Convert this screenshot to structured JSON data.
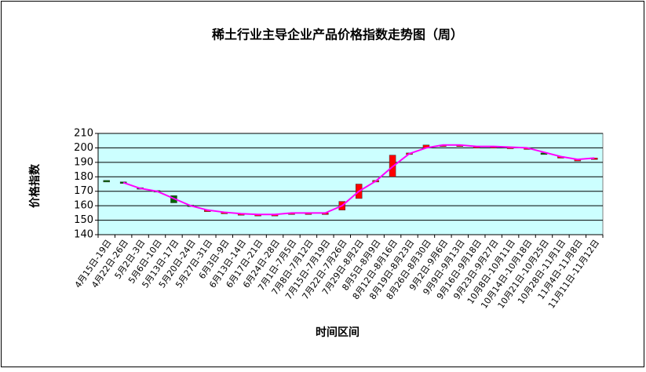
{
  "chart_data": {
    "type": "candlestick",
    "title": "稀土行业主导企业产品价格指数走势图（周）",
    "ylabel": "价格指数",
    "xlabel": "时间区间",
    "categories": [
      "4月15日-19日",
      "4月22日-26日",
      "5月2日-3日",
      "5月6日-10日",
      "5月13日-17日",
      "5月20日-24日",
      "5月27日-31日",
      "6月3日-9日",
      "6月13日-14日",
      "6月17日-21日",
      "6月24日-28日",
      "7月1日-7月5日",
      "7月8日-7月12日",
      "7月15日-7月19日",
      "7月22日-7月26日",
      "7月29日-8月2日",
      "8月5日-8月9日",
      "8月12日-8月16日",
      "8月19日-8月23日",
      "8月26日-8月30日",
      "9月2日-9月6日",
      "9月9日-9月13日",
      "9月16日-9月18日",
      "9月23日-9月27日",
      "10月8日-10月11日",
      "10月14日-10月18日",
      "10月21日-10月25日",
      "10月28日-11月1日",
      "11月4日-11月8日",
      "11月11日-11月12日"
    ],
    "open": [
      177.5,
      176.5,
      172.5,
      170.5,
      167,
      160.5,
      157,
      155.5,
      154.5,
      154,
      154,
      155,
      155,
      155,
      157,
      165,
      176.5,
      180,
      196,
      200,
      202,
      202,
      201,
      201,
      200.5,
      200,
      196.5,
      194,
      192,
      192
    ],
    "close": [
      177,
      175.5,
      171.5,
      169.5,
      162,
      159.5,
      157,
      155.5,
      154.5,
      154,
      154,
      155,
      155,
      155,
      163,
      175,
      177.5,
      195,
      196.5,
      202,
      202,
      202,
      201,
      201,
      200.5,
      200,
      196,
      194,
      192,
      193
    ],
    "values": [
      null,
      176,
      172,
      170,
      165,
      160,
      157,
      155.5,
      154.5,
      154,
      154,
      155,
      155,
      155,
      160,
      170,
      177,
      187,
      196,
      200,
      202,
      202,
      201,
      201,
      200.5,
      200,
      197,
      194,
      192,
      193
    ],
    "line_color": "#ff00ff",
    "up_color": "#ff0000",
    "down_color": "#006400",
    "plot_background": "#ccffff",
    "ylim": [
      140,
      210
    ],
    "yticks": [
      140,
      150,
      160,
      170,
      180,
      190,
      200,
      210
    ],
    "grid": true
  }
}
